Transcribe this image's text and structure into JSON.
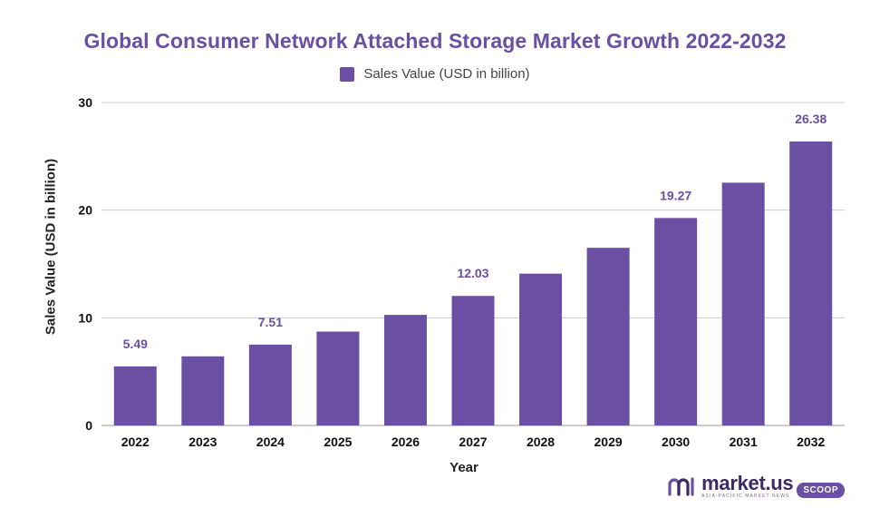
{
  "chart_data": {
    "type": "bar",
    "title": "Global Consumer Network Attached Storage Market Growth 2022-2032",
    "xlabel": "Year",
    "ylabel": "Sales Value (USD in billion)",
    "categories": [
      "2022",
      "2023",
      "2024",
      "2025",
      "2026",
      "2027",
      "2028",
      "2029",
      "2030",
      "2031",
      "2032"
    ],
    "series": [
      {
        "name": "Sales Value (USD in billion)",
        "values": [
          5.49,
          6.42,
          7.51,
          8.72,
          10.27,
          12.03,
          14.1,
          16.5,
          19.27,
          22.55,
          26.38
        ],
        "color": "#6a4fa3"
      }
    ],
    "labeled_points": {
      "2022": "5.49",
      "2024": "7.51",
      "2027": "12.03",
      "2030": "19.27",
      "2032": "26.38"
    },
    "ylim": [
      0,
      30
    ],
    "yticks": [
      0,
      10,
      20,
      30
    ],
    "grid": true,
    "legend_position": "top-center"
  },
  "colors": {
    "bar": "#6a4fa3",
    "title": "#6a4fa3",
    "label": "#6a4fa3",
    "grid": "#cccccc",
    "axis_text": "#111111"
  },
  "brand": {
    "name": "market.us",
    "tagline": "ASIA-PACIFIC MARKET NEWS",
    "badge": "SCOOP"
  }
}
